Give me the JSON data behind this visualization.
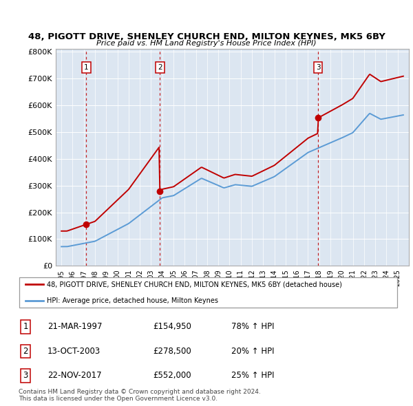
{
  "title": "48, PIGOTT DRIVE, SHENLEY CHURCH END, MILTON KEYNES, MK5 6BY",
  "subtitle": "Price paid vs. HM Land Registry's House Price Index (HPI)",
  "sale_year_nums": [
    1997.22,
    2003.79,
    2017.9
  ],
  "sale_prices": [
    154950,
    278500,
    552000
  ],
  "sale_labels": [
    "1",
    "2",
    "3"
  ],
  "legend_red": "48, PIGOTT DRIVE, SHENLEY CHURCH END, MILTON KEYNES, MK5 6BY (detached house)",
  "legend_blue": "HPI: Average price, detached house, Milton Keynes",
  "table_rows": [
    [
      "1",
      "21-MAR-1997",
      "£154,950",
      "78% ↑ HPI"
    ],
    [
      "2",
      "13-OCT-2003",
      "£278,500",
      "20% ↑ HPI"
    ],
    [
      "3",
      "22-NOV-2017",
      "£552,000",
      "25% ↑ HPI"
    ]
  ],
  "footer": "Contains HM Land Registry data © Crown copyright and database right 2024.\nThis data is licensed under the Open Government Licence v3.0.",
  "hpi_color": "#5b9bd5",
  "price_color": "#c00000",
  "bg_color": "#dce6f1",
  "dashed_color": "#c00000",
  "yticks": [
    0,
    100000,
    200000,
    300000,
    400000,
    500000,
    600000,
    700000,
    800000
  ],
  "xstart": 1995,
  "xend": 2025
}
